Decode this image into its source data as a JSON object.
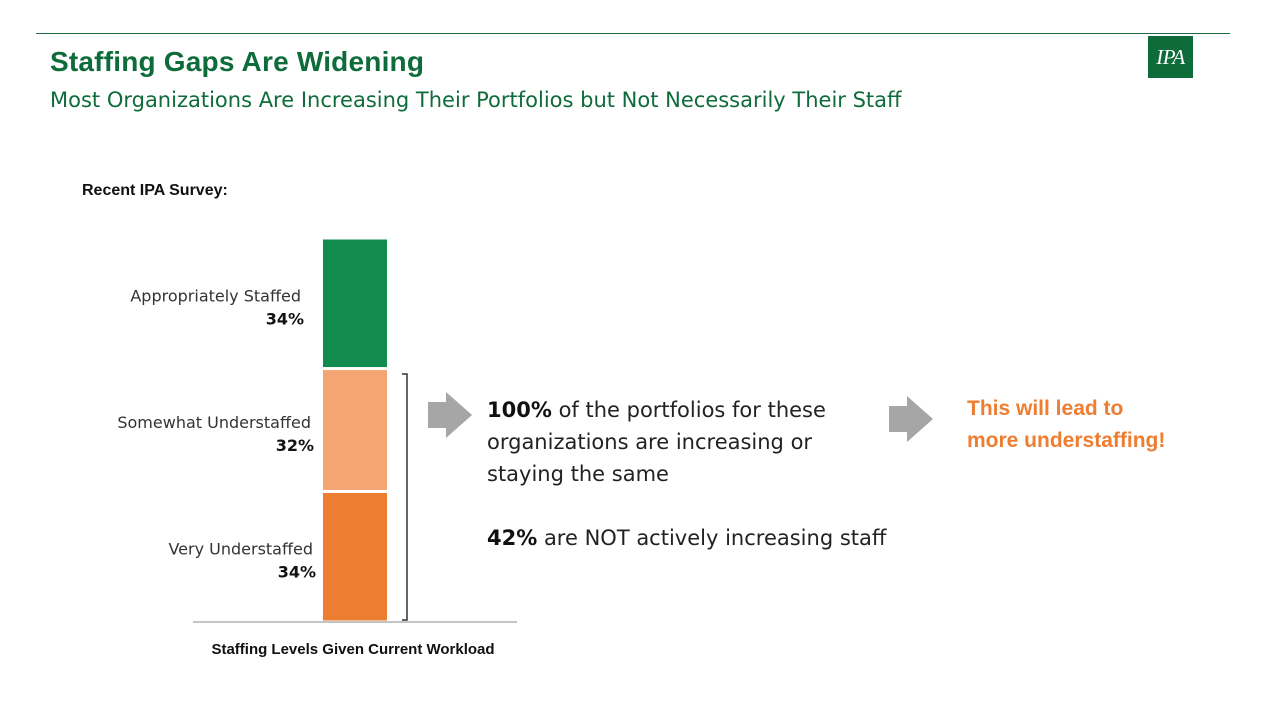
{
  "header": {
    "title": "Staffing Gaps Are Widening",
    "subtitle": "Most Organizations Are Increasing Their Portfolios but Not Necessarily Their Staff",
    "logo_text": "IPA"
  },
  "survey_label": "Recent IPA Survey:",
  "chart_data": {
    "type": "bar",
    "stacked": true,
    "xlabel": "Staffing Levels Given Current Workload",
    "categories": [
      "Staffing Levels Given Current Workload"
    ],
    "series": [
      {
        "name": "Very Understaffed",
        "values": [
          34
        ],
        "label": "34%",
        "color": "#ed7d31"
      },
      {
        "name": "Somewhat Understaffed",
        "values": [
          32
        ],
        "label": "32%",
        "color": "#f4a572"
      },
      {
        "name": "Appropriately Staffed",
        "values": [
          34
        ],
        "label": "34%",
        "color": "#128c4e"
      }
    ],
    "ylim": [
      0,
      100
    ],
    "grid": false,
    "legend": "none"
  },
  "stats": {
    "stat1_value": "100%",
    "stat1_text": " of the portfolios for these organizations are increasing or staying the same",
    "stat2_value": "42%",
    "stat2_text": " are NOT actively increasing staff"
  },
  "conclusion": {
    "line1": "This will lead to",
    "line2": "more understaffing!"
  },
  "colors": {
    "brand_green": "#0e6b3a",
    "accent_orange": "#ed7d31",
    "arrow_gray": "#a6a6a6"
  }
}
